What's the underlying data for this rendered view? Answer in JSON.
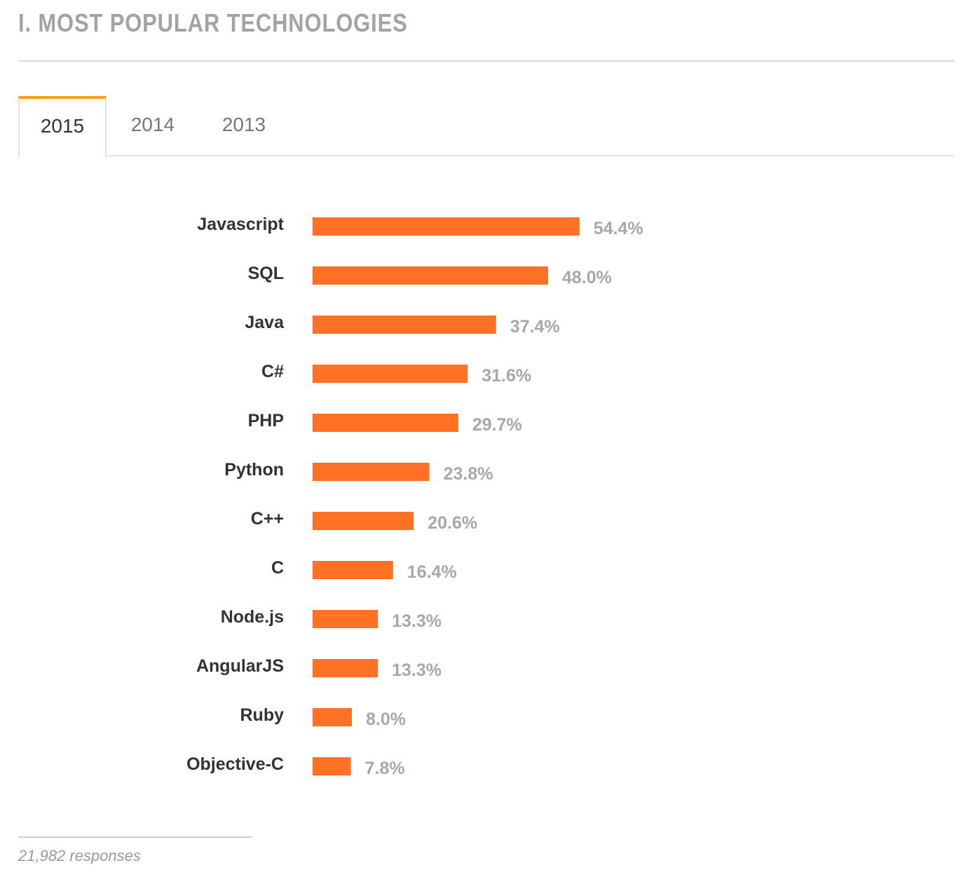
{
  "section": {
    "title": "I. MOST POPULAR TECHNOLOGIES"
  },
  "tabs": [
    {
      "label": "2015",
      "active": true
    },
    {
      "label": "2014",
      "active": false
    },
    {
      "label": "2013",
      "active": false
    }
  ],
  "colors": {
    "bar": "#ff7124",
    "tab_accent": "#f2a11a"
  },
  "chart_data": {
    "type": "bar",
    "orientation": "horizontal",
    "title": "",
    "xlabel": "",
    "ylabel": "",
    "xlim": [
      0,
      100
    ],
    "categories": [
      "Javascript",
      "SQL",
      "Java",
      "C#",
      "PHP",
      "Python",
      "C++",
      "C",
      "Node.js",
      "AngularJS",
      "Ruby",
      "Objective-C"
    ],
    "values": [
      54.4,
      48.0,
      37.4,
      31.6,
      29.7,
      23.8,
      20.6,
      16.4,
      13.3,
      13.3,
      8.0,
      7.8
    ],
    "value_labels": [
      "54.4%",
      "48.0%",
      "37.4%",
      "31.6%",
      "29.7%",
      "23.8%",
      "20.6%",
      "16.4%",
      "13.3%",
      "13.3%",
      "8.0%",
      "7.8%"
    ],
    "grid": false,
    "legend": "none"
  },
  "footer": {
    "note": "21,982 responses"
  }
}
